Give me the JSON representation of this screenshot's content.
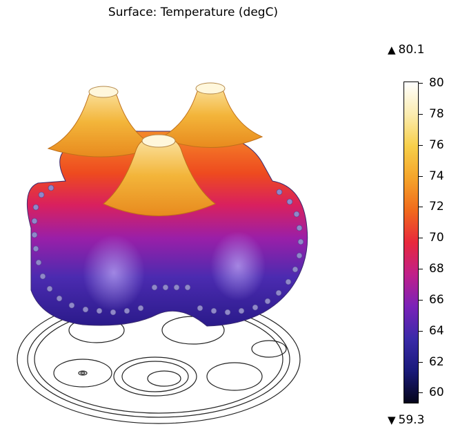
{
  "chart_data": {
    "type": "heatmap",
    "title": "Surface: Temperature (degC)",
    "quantity": "Temperature",
    "unit": "degC",
    "range_max": 80.1,
    "range_min": 59.3,
    "range_max_text": "80.1",
    "range_min_text": "59.3",
    "colorbar_ticks": [
      60,
      62,
      64,
      66,
      68,
      70,
      72,
      74,
      76,
      78,
      80
    ],
    "colormap": [
      "#05051a",
      "#1a1a7a",
      "#3a2aa8",
      "#7a22b8",
      "#c0208a",
      "#e8283c",
      "#f06a1c",
      "#f5a42a",
      "#f7cf4a",
      "#fbecb0",
      "#ffffff"
    ],
    "cmin": 59.3,
    "cmax": 80.1
  },
  "icons": {
    "max_marker": "up-triangle",
    "min_marker": "down-triangle"
  },
  "glyphs": {
    "up": "▲",
    "down": "▼"
  }
}
